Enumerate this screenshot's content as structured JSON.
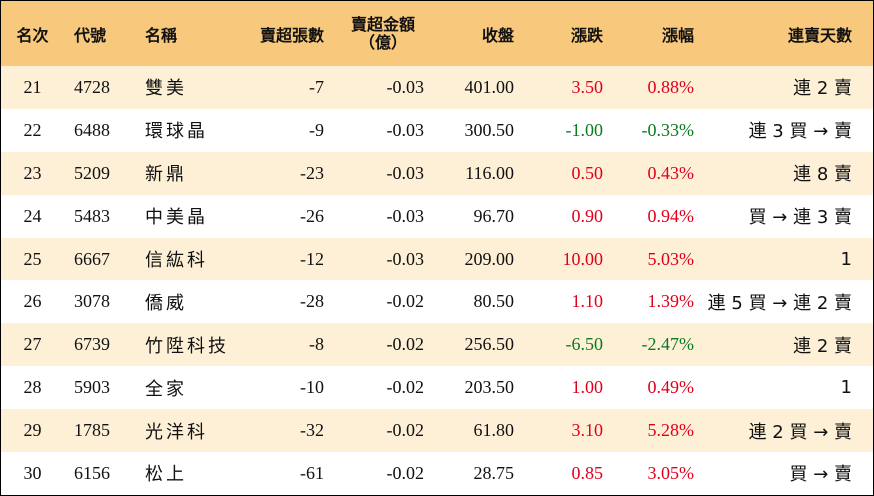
{
  "header": {
    "rank": "名次",
    "code": "代號",
    "name": "名稱",
    "lots": "賣超張數",
    "amount_line1": "賣超金額",
    "amount_line2": "（億）",
    "close": "收盤",
    "change": "漲跌",
    "pct": "漲幅",
    "days": "連賣天數"
  },
  "colors": {
    "header_bg": "#f8c97c",
    "stripe_bg": "#fdf0d6",
    "up": "#e0001b",
    "down": "#0a7a1e"
  },
  "rows": [
    {
      "rank": "21",
      "code": "4728",
      "name": "雙美",
      "lots": "-7",
      "amount": "-0.03",
      "close": "401.00",
      "change": "3.50",
      "pct": "0.88%",
      "days": "連 2 賣",
      "dir": "up"
    },
    {
      "rank": "22",
      "code": "6488",
      "name": "環球晶",
      "lots": "-9",
      "amount": "-0.03",
      "close": "300.50",
      "change": "-1.00",
      "pct": "-0.33%",
      "days": "連 3 買 → 賣",
      "dir": "down"
    },
    {
      "rank": "23",
      "code": "5209",
      "name": "新鼎",
      "lots": "-23",
      "amount": "-0.03",
      "close": "116.00",
      "change": "0.50",
      "pct": "0.43%",
      "days": "連 8 賣",
      "dir": "up"
    },
    {
      "rank": "24",
      "code": "5483",
      "name": "中美晶",
      "lots": "-26",
      "amount": "-0.03",
      "close": "96.70",
      "change": "0.90",
      "pct": "0.94%",
      "days": "買 → 連 3 賣",
      "dir": "up"
    },
    {
      "rank": "25",
      "code": "6667",
      "name": "信紘科",
      "lots": "-12",
      "amount": "-0.03",
      "close": "209.00",
      "change": "10.00",
      "pct": "5.03%",
      "days": "1",
      "dir": "up"
    },
    {
      "rank": "26",
      "code": "3078",
      "name": "僑威",
      "lots": "-28",
      "amount": "-0.02",
      "close": "80.50",
      "change": "1.10",
      "pct": "1.39%",
      "days": "連 5 買 → 連 2 賣",
      "dir": "up"
    },
    {
      "rank": "27",
      "code": "6739",
      "name": "竹陞科技",
      "lots": "-8",
      "amount": "-0.02",
      "close": "256.50",
      "change": "-6.50",
      "pct": "-2.47%",
      "days": "連 2 賣",
      "dir": "down"
    },
    {
      "rank": "28",
      "code": "5903",
      "name": "全家",
      "lots": "-10",
      "amount": "-0.02",
      "close": "203.50",
      "change": "1.00",
      "pct": "0.49%",
      "days": "1",
      "dir": "up"
    },
    {
      "rank": "29",
      "code": "1785",
      "name": "光洋科",
      "lots": "-32",
      "amount": "-0.02",
      "close": "61.80",
      "change": "3.10",
      "pct": "5.28%",
      "days": "連 2 買 → 賣",
      "dir": "up"
    },
    {
      "rank": "30",
      "code": "6156",
      "name": "松上",
      "lots": "-61",
      "amount": "-0.02",
      "close": "28.75",
      "change": "0.85",
      "pct": "3.05%",
      "days": "買 → 賣",
      "dir": "up"
    }
  ]
}
